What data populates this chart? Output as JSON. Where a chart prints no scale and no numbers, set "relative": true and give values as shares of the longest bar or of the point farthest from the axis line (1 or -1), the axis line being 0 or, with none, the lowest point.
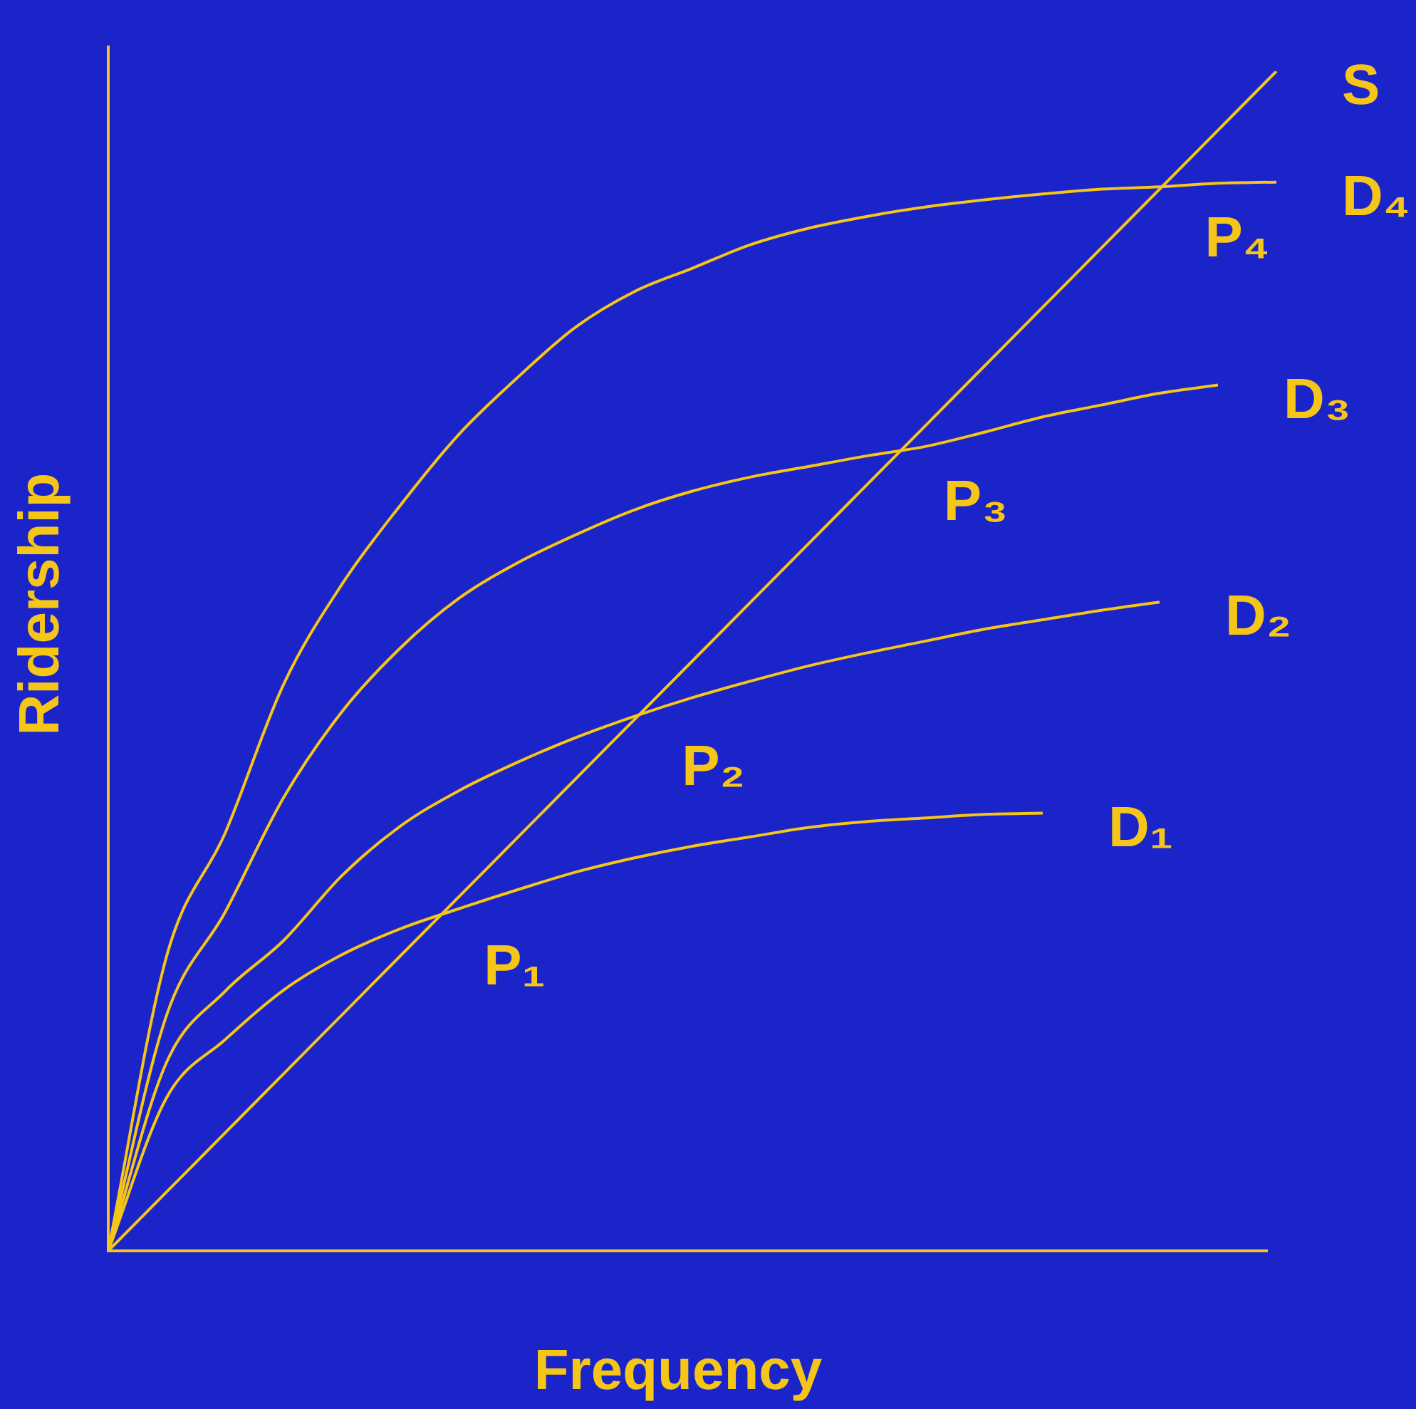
{
  "chart_data": {
    "type": "line",
    "relative": true,
    "xlabel": "Frequency",
    "ylabel": "Ridership",
    "legend": false,
    "marker": "none",
    "categories": [
      null,
      null,
      null,
      null,
      null,
      null,
      null,
      null,
      null,
      null,
      null,
      null,
      null,
      null,
      null,
      null,
      null,
      null,
      null,
      null,
      null
    ],
    "series": [
      {
        "name": "S",
        "color": "#f5c518",
        "values": [
          0,
          0.05,
          0.1,
          0.15,
          0.2,
          0.25,
          0.3,
          0.35,
          0.4,
          0.45,
          0.5,
          0.55,
          0.6,
          0.65,
          0.7,
          0.75,
          0.8,
          0.85,
          0.9,
          0.95,
          1
        ]
      },
      {
        "name": "D₄",
        "color": "#f5c518",
        "values": [
          0,
          0.25,
          0.354,
          0.48,
          0.565,
          0.632,
          0.692,
          0.74,
          0.783,
          0.813,
          0.833,
          0.853,
          0.867,
          0.877,
          0.885,
          0.891,
          0.896,
          0.9,
          0.902,
          0.905,
          0.906
        ]
      },
      {
        "name": "D₃",
        "color": "#f5c518",
        "values": [
          0,
          0.2,
          0.287,
          0.384,
          0.457,
          0.511,
          0.553,
          0.583,
          0.607,
          0.628,
          0.644,
          0.656,
          0.665,
          0.674,
          0.682,
          0.694,
          0.707,
          0.717,
          0.727,
          0.734,
          null
        ]
      },
      {
        "name": "D₂",
        "color": "#f5c518",
        "values": [
          0,
          0.16,
          0.22,
          0.263,
          0.318,
          0.36,
          0.39,
          0.414,
          0.435,
          0.453,
          0.469,
          0.483,
          0.496,
          0.507,
          0.517,
          0.527,
          0.535,
          0.543,
          0.55,
          null,
          null
        ]
      },
      {
        "name": "D₁",
        "color": "#f5c518",
        "values": [
          0,
          0.13,
          0.179,
          0.221,
          0.251,
          0.273,
          0.29,
          0.306,
          0.321,
          0.333,
          0.343,
          0.351,
          0.359,
          0.364,
          0.367,
          0.37,
          0.371,
          null,
          null,
          null,
          null
        ]
      }
    ],
    "annotations": [
      "P₁",
      "P₂",
      "P₃",
      "P₄"
    ]
  }
}
